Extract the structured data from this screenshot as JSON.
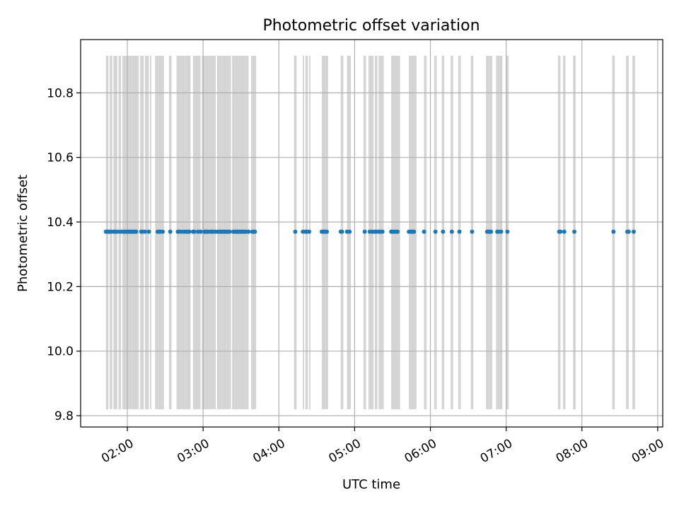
{
  "chart_data": {
    "type": "scatter",
    "title": "Photometric offset variation",
    "xlabel": "UTC time",
    "ylabel": "Photometric offset",
    "x_axis": "time",
    "xlim": [
      "01:23",
      "09:04"
    ],
    "ylim": [
      9.765,
      10.965
    ],
    "xticks": [
      "02:00",
      "03:00",
      "04:00",
      "05:00",
      "06:00",
      "07:00",
      "08:00",
      "09:00"
    ],
    "yticks": [
      "9.8",
      "10.0",
      "10.2",
      "10.4",
      "10.6",
      "10.8"
    ],
    "grid": true,
    "colors": {
      "points": "#1f77b4",
      "spans": "#d3d3d3",
      "grid": "#b0b0b0"
    },
    "band_range": [
      9.82,
      10.915
    ],
    "spans": [
      [
        "01:43",
        "01:45"
      ],
      [
        "01:46",
        "01:47"
      ],
      [
        "01:47",
        "01:48"
      ],
      [
        "01:49",
        "01:50"
      ],
      [
        "01:50",
        "01:51"
      ],
      [
        "01:51",
        "01:52"
      ],
      [
        "01:53",
        "01:54"
      ],
      [
        "01:54",
        "01:55"
      ],
      [
        "01:56",
        "01:57"
      ],
      [
        "01:57",
        "01:58"
      ],
      [
        "01:58",
        "01:59"
      ],
      [
        "01:59",
        "02:00"
      ],
      [
        "02:00",
        "02:01"
      ],
      [
        "02:01",
        "02:02"
      ],
      [
        "02:02",
        "02:03"
      ],
      [
        "02:03",
        "02:04"
      ],
      [
        "02:04",
        "02:05"
      ],
      [
        "02:05",
        "02:06"
      ],
      [
        "02:06",
        "02:07"
      ],
      [
        "02:07",
        "02:08"
      ],
      [
        "02:08",
        "02:09"
      ],
      [
        "02:10",
        "02:11"
      ],
      [
        "02:11",
        "02:12"
      ],
      [
        "02:12",
        "02:13"
      ],
      [
        "02:14",
        "02:15"
      ],
      [
        "02:15",
        "02:16"
      ],
      [
        "02:16",
        "02:17"
      ],
      [
        "02:18",
        "02:19"
      ],
      [
        "02:22",
        "02:23"
      ],
      [
        "02:23",
        "02:24"
      ],
      [
        "02:24",
        "02:25"
      ],
      [
        "02:25",
        "02:26"
      ],
      [
        "02:26",
        "02:27"
      ],
      [
        "02:27",
        "02:28"
      ],
      [
        "02:28",
        "02:29"
      ],
      [
        "02:33",
        "02:35"
      ],
      [
        "02:39",
        "02:40"
      ],
      [
        "02:40",
        "02:41"
      ],
      [
        "02:41",
        "02:42"
      ],
      [
        "02:42",
        "02:43"
      ],
      [
        "02:43",
        "02:44"
      ],
      [
        "02:44",
        "02:45"
      ],
      [
        "02:45",
        "02:46"
      ],
      [
        "02:46",
        "02:47"
      ],
      [
        "02:47",
        "02:48"
      ],
      [
        "02:48",
        "02:49"
      ],
      [
        "02:49",
        "02:50"
      ],
      [
        "02:52",
        "02:53"
      ],
      [
        "02:53",
        "02:54"
      ],
      [
        "02:54",
        "02:55"
      ],
      [
        "02:55",
        "02:56"
      ],
      [
        "02:56",
        "02:57"
      ],
      [
        "02:57",
        "02:58"
      ],
      [
        "02:59",
        "03:00"
      ],
      [
        "03:00",
        "03:01"
      ],
      [
        "03:01",
        "03:02"
      ],
      [
        "03:02",
        "03:03"
      ],
      [
        "03:03",
        "03:04"
      ],
      [
        "03:04",
        "03:05"
      ],
      [
        "03:05",
        "03:06"
      ],
      [
        "03:06",
        "03:07"
      ],
      [
        "03:07",
        "03:08"
      ],
      [
        "03:08",
        "03:09"
      ],
      [
        "03:09",
        "03:10"
      ],
      [
        "03:11",
        "03:12"
      ],
      [
        "03:12",
        "03:13"
      ],
      [
        "03:13",
        "03:14"
      ],
      [
        "03:14",
        "03:15"
      ],
      [
        "03:15",
        "03:16"
      ],
      [
        "03:16",
        "03:17"
      ],
      [
        "03:17",
        "03:18"
      ],
      [
        "03:18",
        "03:19"
      ],
      [
        "03:19",
        "03:20"
      ],
      [
        "03:20",
        "03:21"
      ],
      [
        "03:21",
        "03:22"
      ],
      [
        "03:23",
        "03:24"
      ],
      [
        "03:24",
        "03:25"
      ],
      [
        "03:25",
        "03:26"
      ],
      [
        "03:26",
        "03:27"
      ],
      [
        "03:27",
        "03:28"
      ],
      [
        "03:28",
        "03:29"
      ],
      [
        "03:29",
        "03:30"
      ],
      [
        "03:30",
        "03:31"
      ],
      [
        "03:31",
        "03:32"
      ],
      [
        "03:32",
        "03:33"
      ],
      [
        "03:33",
        "03:34"
      ],
      [
        "03:34",
        "03:35"
      ],
      [
        "03:35",
        "03:36"
      ],
      [
        "03:38",
        "03:39"
      ],
      [
        "03:39",
        "03:40"
      ],
      [
        "03:40",
        "03:41"
      ],
      [
        "03:41",
        "03:42"
      ],
      [
        "04:12",
        "04:13"
      ],
      [
        "04:13",
        "04:14"
      ],
      [
        "04:19",
        "04:20"
      ],
      [
        "04:21",
        "04:22"
      ],
      [
        "04:22",
        "04:23"
      ],
      [
        "04:24",
        "04:25"
      ],
      [
        "04:34",
        "04:35"
      ],
      [
        "04:35",
        "04:36"
      ],
      [
        "04:36",
        "04:37"
      ],
      [
        "04:37",
        "04:38"
      ],
      [
        "04:38",
        "04:39"
      ],
      [
        "04:49",
        "04:50"
      ],
      [
        "04:50",
        "04:51"
      ],
      [
        "04:54",
        "04:55"
      ],
      [
        "04:55",
        "04:56"
      ],
      [
        "04:56",
        "04:57"
      ],
      [
        "05:07",
        "05:08"
      ],
      [
        "05:08",
        "05:09"
      ],
      [
        "05:11",
        "05:12"
      ],
      [
        "05:12",
        "05:13"
      ],
      [
        "05:13",
        "05:14"
      ],
      [
        "05:14",
        "05:15"
      ],
      [
        "05:16",
        "05:17"
      ],
      [
        "05:17",
        "05:18"
      ],
      [
        "05:19",
        "05:20"
      ],
      [
        "05:20",
        "05:21"
      ],
      [
        "05:21",
        "05:22"
      ],
      [
        "05:22",
        "05:23"
      ],
      [
        "05:29",
        "05:30"
      ],
      [
        "05:30",
        "05:31"
      ],
      [
        "05:31",
        "05:32"
      ],
      [
        "05:32",
        "05:33"
      ],
      [
        "05:33",
        "05:34"
      ],
      [
        "05:34",
        "05:35"
      ],
      [
        "05:35",
        "05:36"
      ],
      [
        "05:43",
        "05:44"
      ],
      [
        "05:44",
        "05:45"
      ],
      [
        "05:45",
        "05:46"
      ],
      [
        "05:46",
        "05:47"
      ],
      [
        "05:47",
        "05:48"
      ],
      [
        "05:48",
        "05:49"
      ],
      [
        "05:55",
        "05:56"
      ],
      [
        "05:56",
        "05:57"
      ],
      [
        "06:03",
        "06:04"
      ],
      [
        "06:04",
        "06:05"
      ],
      [
        "06:09",
        "06:10"
      ],
      [
        "06:10",
        "06:11"
      ],
      [
        "06:16",
        "06:17"
      ],
      [
        "06:17",
        "06:18"
      ],
      [
        "06:22",
        "06:23"
      ],
      [
        "06:23",
        "06:24"
      ],
      [
        "06:32",
        "06:33"
      ],
      [
        "06:33",
        "06:34"
      ],
      [
        "06:44",
        "06:45"
      ],
      [
        "06:45",
        "06:46"
      ],
      [
        "06:46",
        "06:47"
      ],
      [
        "06:47",
        "06:48"
      ],
      [
        "06:48",
        "06:49"
      ],
      [
        "06:52",
        "06:53"
      ],
      [
        "06:53",
        "06:54"
      ],
      [
        "06:54",
        "06:55"
      ],
      [
        "06:55",
        "06:56"
      ],
      [
        "06:56",
        "06:57"
      ],
      [
        "07:00",
        "07:01"
      ],
      [
        "07:01",
        "07:02"
      ],
      [
        "07:41",
        "07:42"
      ],
      [
        "07:42",
        "07:43"
      ],
      [
        "07:45",
        "07:46"
      ],
      [
        "07:46",
        "07:47"
      ],
      [
        "07:53",
        "07:55"
      ],
      [
        "08:24",
        "08:26"
      ],
      [
        "08:35",
        "08:37"
      ],
      [
        "08:40",
        "08:42"
      ]
    ],
    "points": [
      {
        "x": "01:43",
        "y": 10.37
      },
      {
        "x": "01:44",
        "y": 10.37
      },
      {
        "x": "01:45",
        "y": 10.37
      },
      {
        "x": "01:46",
        "y": 10.37
      },
      {
        "x": "01:47",
        "y": 10.37
      },
      {
        "x": "01:49",
        "y": 10.37
      },
      {
        "x": "01:50",
        "y": 10.37
      },
      {
        "x": "01:51",
        "y": 10.37
      },
      {
        "x": "01:53",
        "y": 10.37
      },
      {
        "x": "01:55",
        "y": 10.37
      },
      {
        "x": "01:57",
        "y": 10.37
      },
      {
        "x": "01:58",
        "y": 10.37
      },
      {
        "x": "01:59",
        "y": 10.37
      },
      {
        "x": "02:00",
        "y": 10.37
      },
      {
        "x": "02:01",
        "y": 10.37
      },
      {
        "x": "02:02",
        "y": 10.37
      },
      {
        "x": "02:03",
        "y": 10.37
      },
      {
        "x": "02:04",
        "y": 10.37
      },
      {
        "x": "02:05",
        "y": 10.37
      },
      {
        "x": "02:06",
        "y": 10.37
      },
      {
        "x": "02:07",
        "y": 10.37
      },
      {
        "x": "02:11",
        "y": 10.37
      },
      {
        "x": "02:12",
        "y": 10.37
      },
      {
        "x": "02:14",
        "y": 10.37
      },
      {
        "x": "02:17",
        "y": 10.37
      },
      {
        "x": "02:24",
        "y": 10.37
      },
      {
        "x": "02:25",
        "y": 10.37
      },
      {
        "x": "02:26",
        "y": 10.37
      },
      {
        "x": "02:28",
        "y": 10.37
      },
      {
        "x": "02:34",
        "y": 10.37
      },
      {
        "x": "02:40",
        "y": 10.37
      },
      {
        "x": "02:41",
        "y": 10.37
      },
      {
        "x": "02:43",
        "y": 10.37
      },
      {
        "x": "02:45",
        "y": 10.37
      },
      {
        "x": "02:47",
        "y": 10.37
      },
      {
        "x": "02:48",
        "y": 10.37
      },
      {
        "x": "02:49",
        "y": 10.37
      },
      {
        "x": "02:52",
        "y": 10.37
      },
      {
        "x": "02:53",
        "y": 10.37
      },
      {
        "x": "02:56",
        "y": 10.37
      },
      {
        "x": "02:58",
        "y": 10.37
      },
      {
        "x": "03:01",
        "y": 10.37
      },
      {
        "x": "03:02",
        "y": 10.37
      },
      {
        "x": "03:03",
        "y": 10.37
      },
      {
        "x": "03:04",
        "y": 10.37
      },
      {
        "x": "03:06",
        "y": 10.37
      },
      {
        "x": "03:07",
        "y": 10.37
      },
      {
        "x": "03:08",
        "y": 10.37
      },
      {
        "x": "03:10",
        "y": 10.37
      },
      {
        "x": "03:12",
        "y": 10.37
      },
      {
        "x": "03:13",
        "y": 10.37
      },
      {
        "x": "03:14",
        "y": 10.37
      },
      {
        "x": "03:15",
        "y": 10.37
      },
      {
        "x": "03:16",
        "y": 10.37
      },
      {
        "x": "03:17",
        "y": 10.37
      },
      {
        "x": "03:18",
        "y": 10.37
      },
      {
        "x": "03:19",
        "y": 10.37
      },
      {
        "x": "03:20",
        "y": 10.37
      },
      {
        "x": "03:21",
        "y": 10.37
      },
      {
        "x": "03:24",
        "y": 10.37
      },
      {
        "x": "03:25",
        "y": 10.37
      },
      {
        "x": "03:26",
        "y": 10.37
      },
      {
        "x": "03:27",
        "y": 10.37
      },
      {
        "x": "03:28",
        "y": 10.37
      },
      {
        "x": "03:29",
        "y": 10.37
      },
      {
        "x": "03:30",
        "y": 10.37
      },
      {
        "x": "03:31",
        "y": 10.37
      },
      {
        "x": "03:32",
        "y": 10.37
      },
      {
        "x": "03:33",
        "y": 10.37
      },
      {
        "x": "03:34",
        "y": 10.37
      },
      {
        "x": "03:36",
        "y": 10.37
      },
      {
        "x": "03:39",
        "y": 10.37
      },
      {
        "x": "03:40",
        "y": 10.37
      },
      {
        "x": "03:41",
        "y": 10.37
      },
      {
        "x": "04:13",
        "y": 10.37
      },
      {
        "x": "04:19",
        "y": 10.37
      },
      {
        "x": "04:21",
        "y": 10.37
      },
      {
        "x": "04:22",
        "y": 10.37
      },
      {
        "x": "04:24",
        "y": 10.37
      },
      {
        "x": "04:34",
        "y": 10.37
      },
      {
        "x": "04:35",
        "y": 10.37
      },
      {
        "x": "04:36",
        "y": 10.37
      },
      {
        "x": "04:37",
        "y": 10.37
      },
      {
        "x": "04:38",
        "y": 10.37
      },
      {
        "x": "04:49",
        "y": 10.37
      },
      {
        "x": "04:50",
        "y": 10.37
      },
      {
        "x": "04:54",
        "y": 10.37
      },
      {
        "x": "04:56",
        "y": 10.37
      },
      {
        "x": "05:08",
        "y": 10.37
      },
      {
        "x": "05:12",
        "y": 10.37
      },
      {
        "x": "05:14",
        "y": 10.37
      },
      {
        "x": "05:16",
        "y": 10.37
      },
      {
        "x": "05:17",
        "y": 10.37
      },
      {
        "x": "05:19",
        "y": 10.37
      },
      {
        "x": "05:20",
        "y": 10.37
      },
      {
        "x": "05:22",
        "y": 10.37
      },
      {
        "x": "05:29",
        "y": 10.37
      },
      {
        "x": "05:30",
        "y": 10.37
      },
      {
        "x": "05:31",
        "y": 10.37
      },
      {
        "x": "05:32",
        "y": 10.37
      },
      {
        "x": "05:33",
        "y": 10.37
      },
      {
        "x": "05:34",
        "y": 10.37
      },
      {
        "x": "05:43",
        "y": 10.37
      },
      {
        "x": "05:44",
        "y": 10.37
      },
      {
        "x": "05:45",
        "y": 10.37
      },
      {
        "x": "05:46",
        "y": 10.37
      },
      {
        "x": "05:47",
        "y": 10.37
      },
      {
        "x": "05:55",
        "y": 10.37
      },
      {
        "x": "06:04",
        "y": 10.37
      },
      {
        "x": "06:10",
        "y": 10.37
      },
      {
        "x": "06:17",
        "y": 10.37
      },
      {
        "x": "06:23",
        "y": 10.37
      },
      {
        "x": "06:33",
        "y": 10.37
      },
      {
        "x": "06:45",
        "y": 10.37
      },
      {
        "x": "06:46",
        "y": 10.37
      },
      {
        "x": "06:47",
        "y": 10.37
      },
      {
        "x": "06:48",
        "y": 10.37
      },
      {
        "x": "06:53",
        "y": 10.37
      },
      {
        "x": "06:54",
        "y": 10.37
      },
      {
        "x": "06:56",
        "y": 10.37
      },
      {
        "x": "07:01",
        "y": 10.37
      },
      {
        "x": "07:42",
        "y": 10.37
      },
      {
        "x": "07:43",
        "y": 10.37
      },
      {
        "x": "07:46",
        "y": 10.37
      },
      {
        "x": "07:54",
        "y": 10.37
      },
      {
        "x": "08:25",
        "y": 10.37
      },
      {
        "x": "08:36",
        "y": 10.37
      },
      {
        "x": "08:37",
        "y": 10.37
      },
      {
        "x": "08:41",
        "y": 10.37
      }
    ]
  }
}
